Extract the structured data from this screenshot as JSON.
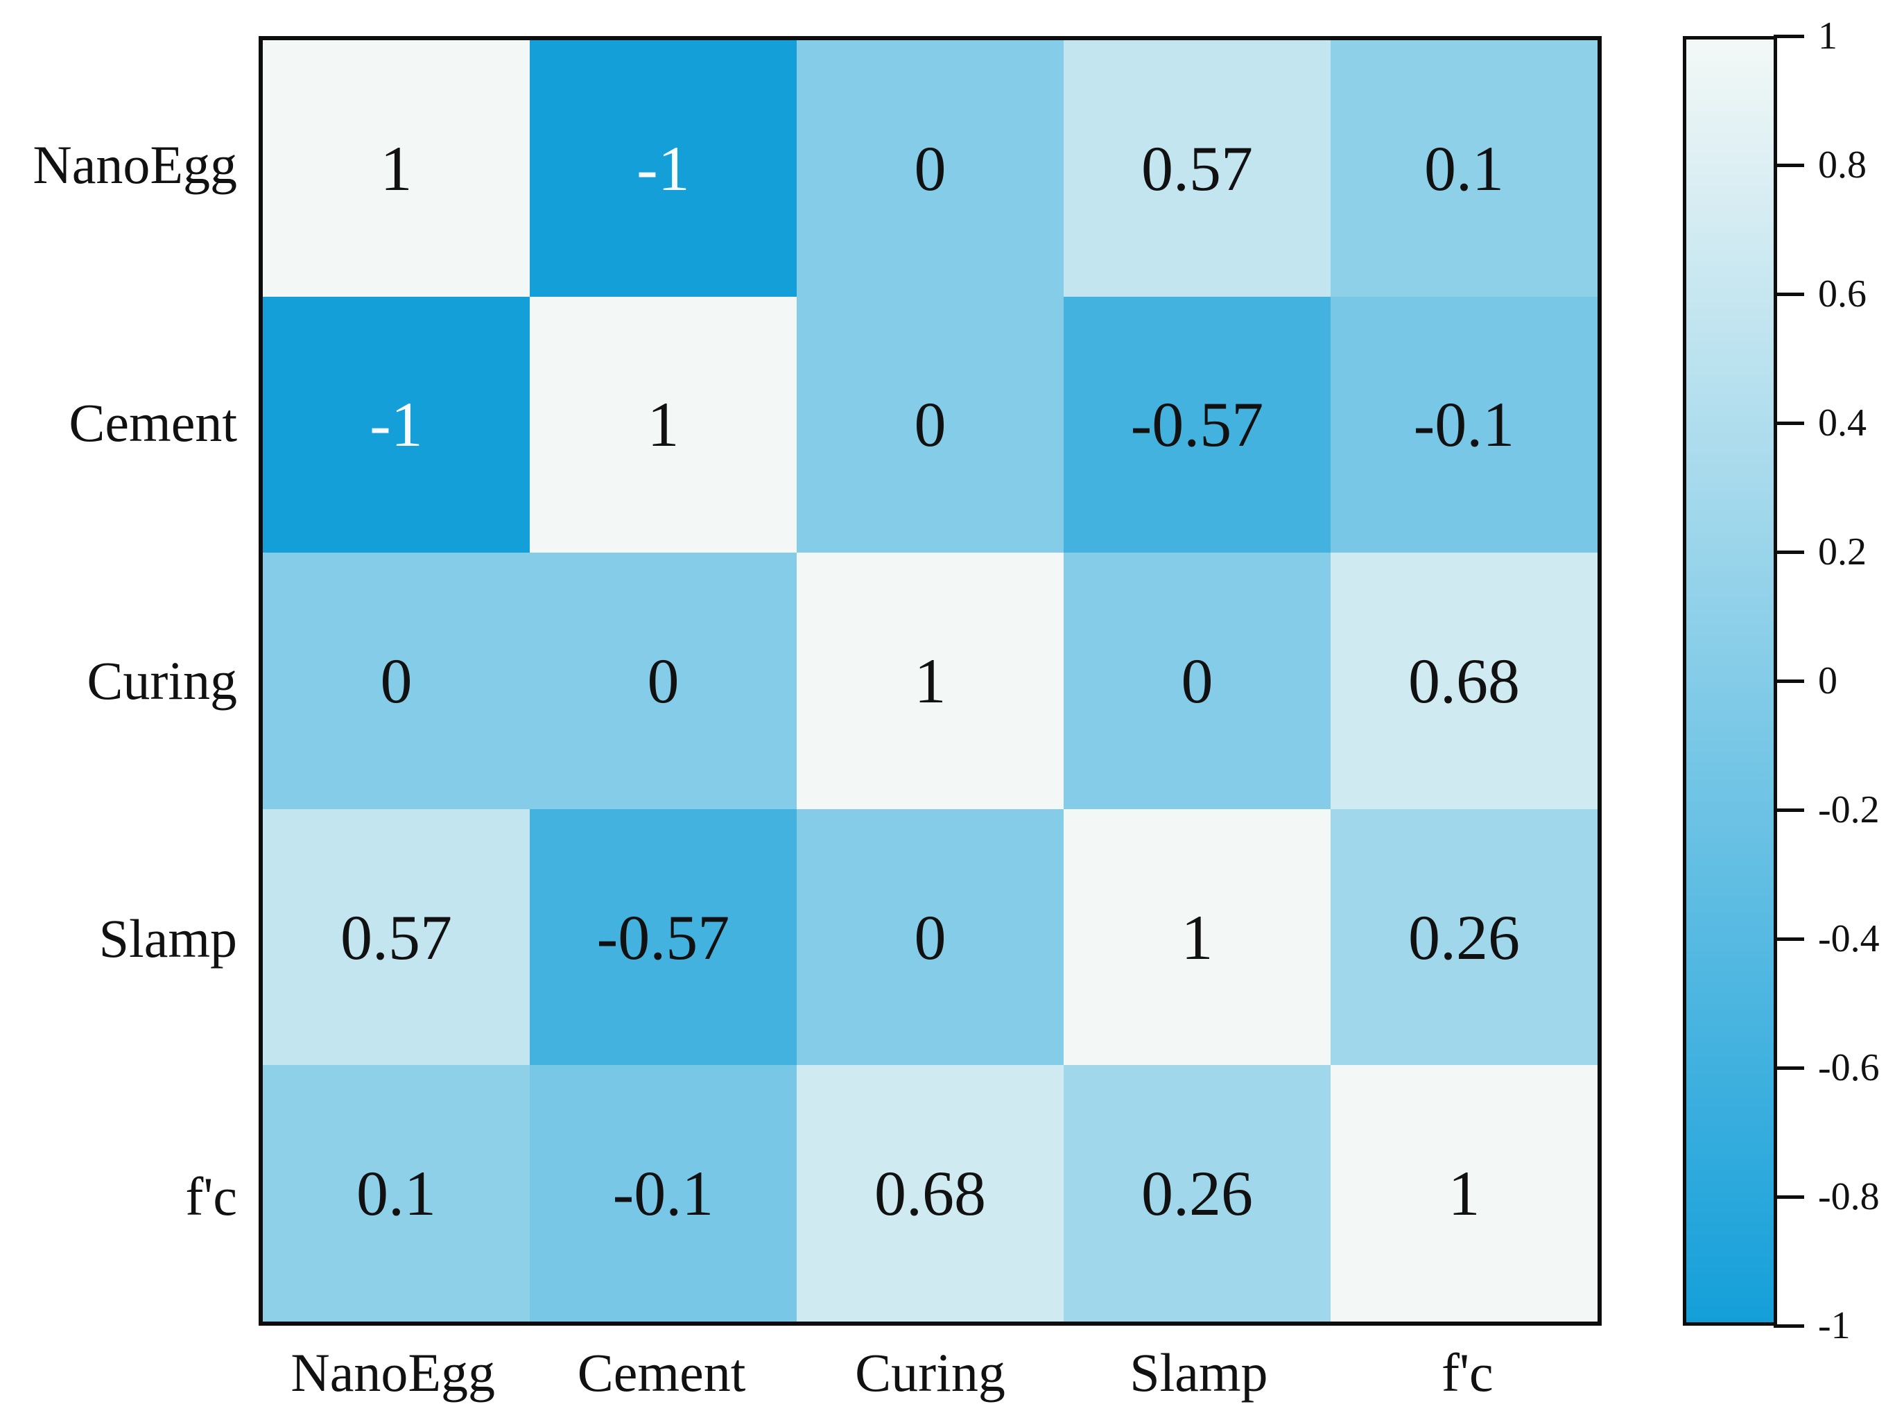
{
  "chart_data": {
    "type": "heatmap",
    "title": "",
    "categories": [
      "NanoEgg",
      "Cement",
      "Curing",
      "Slamp",
      "f'c"
    ],
    "x_axis_labels": [
      "NanoEgg",
      "Cement",
      "Curing",
      "Slamp",
      "f'c"
    ],
    "y_axis_labels": [
      "NanoEgg",
      "Cement",
      "Curing",
      "Slamp",
      "f'c"
    ],
    "matrix": [
      [
        1,
        -1,
        0,
        0.57,
        0.1
      ],
      [
        -1,
        1,
        0,
        -0.57,
        -0.1
      ],
      [
        0,
        0,
        1,
        0,
        0.68
      ],
      [
        0.57,
        -0.57,
        0,
        1,
        0.26
      ],
      [
        0.1,
        -0.1,
        0.68,
        0.26,
        1
      ]
    ],
    "cell_labels": [
      [
        "1",
        "-1",
        "0",
        "0.57",
        "0.1"
      ],
      [
        "-1",
        "1",
        "0",
        "-0.57",
        "-0.1"
      ],
      [
        "0",
        "0",
        "1",
        "0",
        "0.68"
      ],
      [
        "0.57",
        "-0.57",
        "0",
        "1",
        "0.26"
      ],
      [
        "0.1",
        "-0.1",
        "0.68",
        "0.26",
        "1"
      ]
    ],
    "colorbar": {
      "position": "right",
      "min": -1,
      "max": 1,
      "ticks": [
        "1",
        "0.8",
        "0.6",
        "0.4",
        "0.2",
        "0",
        "-0.2",
        "-0.4",
        "-0.6",
        "-0.8",
        "-1"
      ],
      "tick_values": [
        1,
        0.8,
        0.6,
        0.4,
        0.2,
        0,
        -0.2,
        -0.4,
        -0.6,
        -0.8,
        -1
      ],
      "color_max": "#f3f8f6",
      "color_min": "#149fd9"
    },
    "colors": {
      "grid_border": "#0d0d0d",
      "text": "#111111",
      "text_on_dark": "#f8fcfd",
      "background": "#ffffff"
    },
    "grid": false,
    "legend_position": "right"
  }
}
